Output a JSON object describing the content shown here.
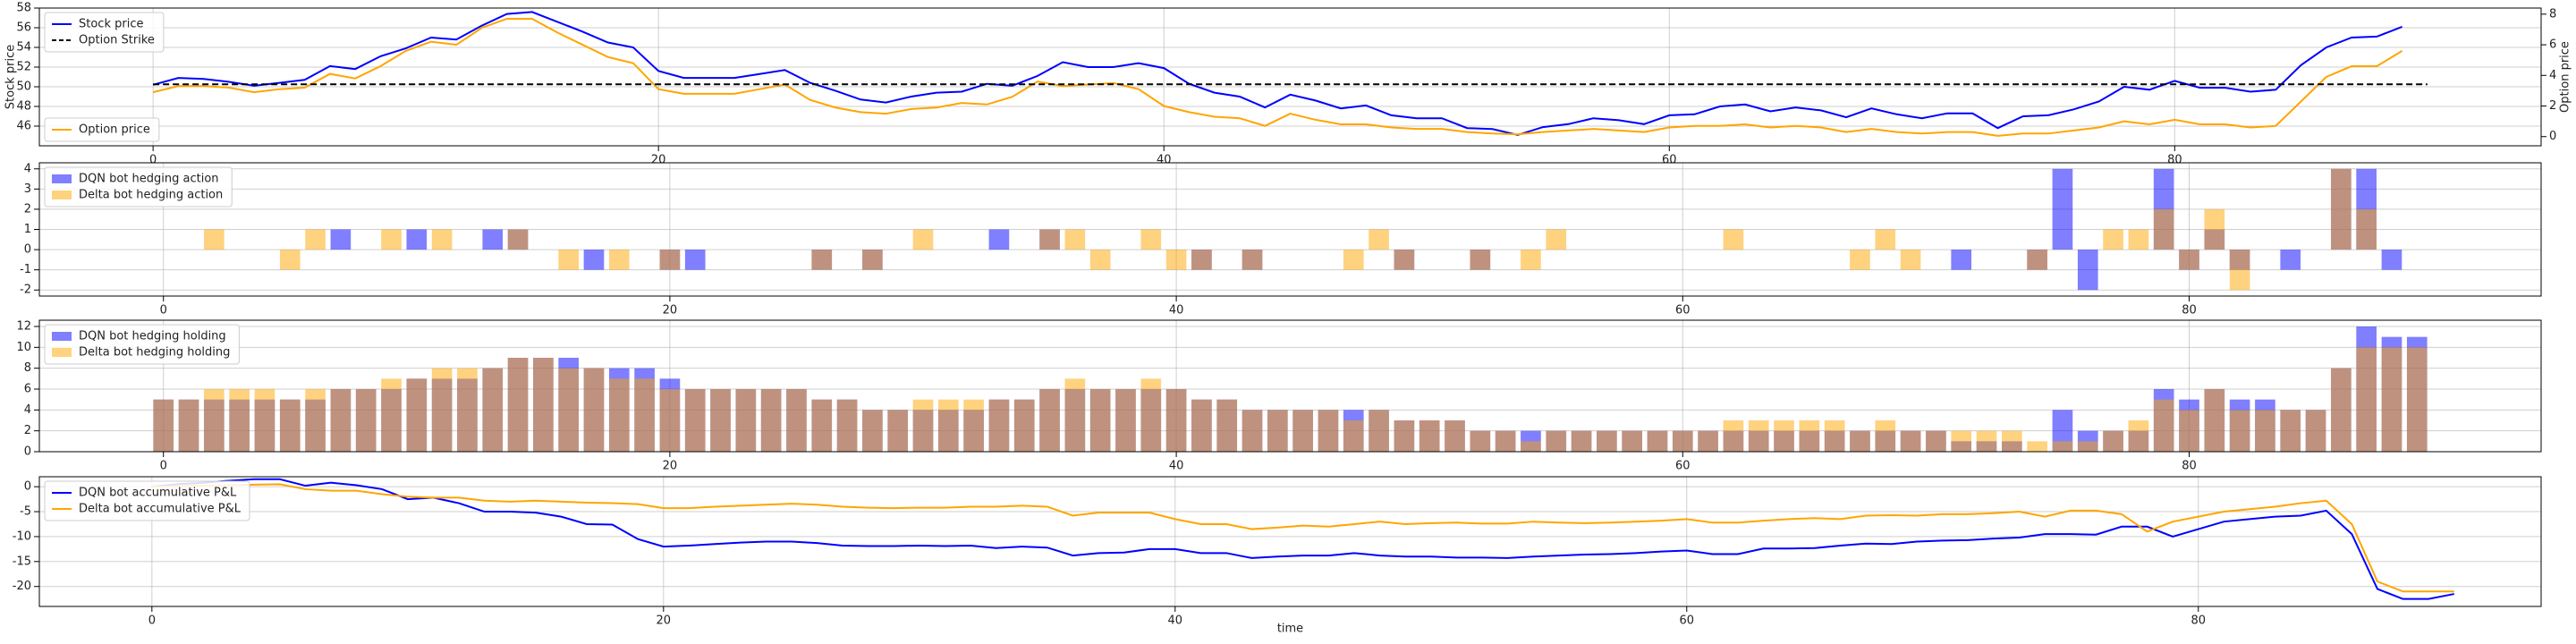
{
  "chart_data": [
    {
      "type": "line",
      "ylabel": "Stock price",
      "y2label": "Option price",
      "grid": true,
      "xlim": [
        -4.5,
        94.5
      ],
      "xticks": [
        0,
        20,
        40,
        60,
        80
      ],
      "ylim": [
        44,
        58
      ],
      "yticks": [
        46,
        48,
        50,
        52,
        54,
        56,
        58
      ],
      "y2lim": [
        -0.6,
        8.4
      ],
      "y2ticks": [
        0,
        2,
        4,
        6,
        8
      ],
      "x": [
        0,
        1,
        2,
        3,
        4,
        5,
        6,
        7,
        8,
        9,
        10,
        11,
        12,
        13,
        14,
        15,
        16,
        17,
        18,
        19,
        20,
        21,
        22,
        23,
        24,
        25,
        26,
        27,
        28,
        29,
        30,
        31,
        32,
        33,
        34,
        35,
        36,
        37,
        38,
        39,
        40,
        41,
        42,
        43,
        44,
        45,
        46,
        47,
        48,
        49,
        50,
        51,
        52,
        53,
        54,
        55,
        56,
        57,
        58,
        59,
        60,
        61,
        62,
        63,
        64,
        65,
        66,
        67,
        68,
        69,
        70,
        71,
        72,
        73,
        74,
        75,
        76,
        77,
        78,
        79,
        80,
        81,
        82,
        83,
        84,
        85,
        86,
        87,
        88,
        89
      ],
      "series": [
        {
          "name": "Stock price",
          "color": "#0000ff",
          "legend": "upper left",
          "values": [
            50.2,
            50.9,
            50.8,
            50.5,
            50.1,
            50.4,
            50.7,
            52.1,
            51.8,
            53.1,
            53.9,
            55.0,
            54.8,
            56.2,
            57.4,
            57.6,
            56.6,
            55.6,
            54.5,
            54.0,
            51.6,
            50.9,
            50.9,
            50.9,
            51.3,
            51.7,
            50.4,
            49.6,
            48.7,
            48.4,
            49.0,
            49.4,
            49.5,
            50.3,
            50.1,
            51.1,
            52.5,
            52.0,
            52.0,
            52.4,
            51.9,
            50.3,
            49.4,
            49.0,
            47.9,
            49.2,
            48.6,
            47.8,
            48.1,
            47.1,
            46.8,
            46.8,
            45.8,
            45.7,
            45.1,
            45.9,
            46.2,
            46.8,
            46.6,
            46.2,
            47.1,
            47.2,
            48.0,
            48.2,
            47.5,
            47.9,
            47.6,
            46.9,
            47.8,
            47.2,
            46.8,
            47.3,
            47.3,
            45.8,
            47.0,
            47.1,
            47.7,
            48.5,
            50.0,
            49.7,
            50.6,
            49.9,
            49.9,
            49.5,
            49.7,
            52.2,
            54.0,
            55.0,
            55.1,
            56.1
          ]
        },
        {
          "name": "Option price",
          "color": "#ffa500",
          "axis": "y2",
          "legend": "lower left",
          "values": [
            2.9,
            3.3,
            3.3,
            3.2,
            2.9,
            3.1,
            3.2,
            4.1,
            3.8,
            4.6,
            5.6,
            6.2,
            6.0,
            7.1,
            7.7,
            7.7,
            6.8,
            6.0,
            5.2,
            4.8,
            3.1,
            2.8,
            2.8,
            2.8,
            3.1,
            3.4,
            2.4,
            1.9,
            1.6,
            1.5,
            1.8,
            1.9,
            2.2,
            2.1,
            2.6,
            3.6,
            3.3,
            3.4,
            3.5,
            3.1,
            2.0,
            1.6,
            1.3,
            1.2,
            0.7,
            1.5,
            1.1,
            0.8,
            0.8,
            0.6,
            0.5,
            0.5,
            0.3,
            0.2,
            0.15,
            0.3,
            0.4,
            0.5,
            0.4,
            0.3,
            0.6,
            0.7,
            0.7,
            0.8,
            0.6,
            0.7,
            0.6,
            0.3,
            0.5,
            0.3,
            0.2,
            0.3,
            0.3,
            0.05,
            0.2,
            0.2,
            0.4,
            0.6,
            1.0,
            0.8,
            1.1,
            0.8,
            0.8,
            0.6,
            0.7,
            2.3,
            3.9,
            4.6,
            4.6,
            5.6
          ]
        }
      ],
      "strike": {
        "name": "Option Strike",
        "color": "#000000",
        "style": "dashed",
        "legend": "upper left",
        "y": 50.25,
        "x": [
          0,
          90
        ]
      }
    },
    {
      "type": "bar",
      "grid": true,
      "alpha": 0.5,
      "xlim": [
        -4.9,
        93.9
      ],
      "xticks": [
        0,
        20,
        40,
        60,
        80
      ],
      "ylim": [
        -2.3,
        4.3
      ],
      "yticks": [
        -2,
        -1,
        0,
        1,
        2,
        3,
        4
      ],
      "x": [
        0,
        1,
        2,
        3,
        4,
        5,
        6,
        7,
        8,
        9,
        10,
        11,
        12,
        13,
        14,
        15,
        16,
        17,
        18,
        19,
        20,
        21,
        22,
        23,
        24,
        25,
        26,
        27,
        28,
        29,
        30,
        31,
        32,
        33,
        34,
        35,
        36,
        37,
        38,
        39,
        40,
        41,
        42,
        43,
        44,
        45,
        46,
        47,
        48,
        49,
        50,
        51,
        52,
        53,
        54,
        55,
        56,
        57,
        58,
        59,
        60,
        61,
        62,
        63,
        64,
        65,
        66,
        67,
        68,
        69,
        70,
        71,
        72,
        73,
        74,
        75,
        76,
        77,
        78,
        79,
        80,
        81,
        82,
        83,
        84,
        85,
        86,
        87,
        88,
        89
      ],
      "series": [
        {
          "name": "DQN bot hedging action",
          "color": "#0000ff",
          "legend": "upper left",
          "values": [
            0,
            0,
            0,
            0,
            0,
            0,
            0,
            1,
            0,
            0,
            1,
            0,
            0,
            1,
            1,
            0,
            0,
            -1,
            0,
            0,
            -1,
            -1,
            0,
            0,
            0,
            0,
            -1,
            0,
            -1,
            0,
            0,
            0,
            0,
            1,
            0,
            1,
            0,
            0,
            0,
            0,
            0,
            -1,
            0,
            -1,
            0,
            0,
            0,
            0,
            0,
            -1,
            0,
            0,
            -1,
            0,
            0,
            0,
            0,
            0,
            0,
            0,
            0,
            0,
            0,
            0,
            0,
            0,
            0,
            0,
            0,
            0,
            0,
            -1,
            0,
            0,
            -1,
            4,
            -2,
            0,
            0,
            4,
            -1,
            1,
            -1,
            0,
            -1,
            0,
            4,
            4,
            -1,
            0
          ]
        },
        {
          "name": "Delta bot hedging action",
          "color": "#ffa500",
          "legend": "upper left",
          "values": [
            0,
            0,
            1,
            0,
            0,
            -1,
            1,
            0,
            0,
            1,
            0,
            1,
            0,
            0,
            1,
            0,
            -1,
            0,
            -1,
            0,
            -1,
            0,
            0,
            0,
            0,
            0,
            -1,
            0,
            -1,
            0,
            1,
            0,
            0,
            0,
            0,
            1,
            1,
            -1,
            0,
            1,
            -1,
            -1,
            0,
            -1,
            0,
            0,
            0,
            -1,
            1,
            -1,
            0,
            0,
            -1,
            0,
            -1,
            1,
            0,
            0,
            0,
            0,
            0,
            0,
            1,
            0,
            0,
            0,
            0,
            -1,
            1,
            -1,
            0,
            0,
            0,
            0,
            -1,
            0,
            0,
            1,
            1,
            2,
            -1,
            2,
            -2,
            0,
            0,
            0,
            4,
            2,
            0,
            0
          ]
        }
      ]
    },
    {
      "type": "bar",
      "grid": true,
      "alpha": 0.5,
      "xlim": [
        -4.9,
        93.9
      ],
      "xticks": [
        0,
        20,
        40,
        60,
        80
      ],
      "ylim": [
        0,
        12.6
      ],
      "yticks": [
        0,
        2,
        4,
        6,
        8,
        10,
        12
      ],
      "x": [
        0,
        1,
        2,
        3,
        4,
        5,
        6,
        7,
        8,
        9,
        10,
        11,
        12,
        13,
        14,
        15,
        16,
        17,
        18,
        19,
        20,
        21,
        22,
        23,
        24,
        25,
        26,
        27,
        28,
        29,
        30,
        31,
        32,
        33,
        34,
        35,
        36,
        37,
        38,
        39,
        40,
        41,
        42,
        43,
        44,
        45,
        46,
        47,
        48,
        49,
        50,
        51,
        52,
        53,
        54,
        55,
        56,
        57,
        58,
        59,
        60,
        61,
        62,
        63,
        64,
        65,
        66,
        67,
        68,
        69,
        70,
        71,
        72,
        73,
        74,
        75,
        76,
        77,
        78,
        79,
        80,
        81,
        82,
        83,
        84,
        85,
        86,
        87,
        88,
        89
      ],
      "series": [
        {
          "name": "DQN bot hedging holding",
          "color": "#0000ff",
          "legend": "upper left",
          "values": [
            5,
            5,
            5,
            5,
            5,
            5,
            5,
            6,
            6,
            6,
            7,
            7,
            7,
            8,
            9,
            9,
            9,
            8,
            8,
            8,
            7,
            6,
            6,
            6,
            6,
            6,
            5,
            5,
            4,
            4,
            4,
            4,
            4,
            5,
            5,
            6,
            6,
            6,
            6,
            6,
            6,
            5,
            5,
            4,
            4,
            4,
            4,
            4,
            4,
            3,
            3,
            3,
            2,
            2,
            2,
            2,
            2,
            2,
            2,
            2,
            2,
            2,
            2,
            2,
            2,
            2,
            2,
            2,
            2,
            2,
            2,
            1,
            1,
            1,
            0,
            4,
            2,
            2,
            2,
            6,
            5,
            6,
            5,
            5,
            4,
            4,
            8,
            12,
            11,
            11
          ]
        },
        {
          "name": "Delta bot hedging holding",
          "color": "#ffa500",
          "legend": "upper left",
          "values": [
            5,
            5,
            6,
            6,
            6,
            5,
            6,
            6,
            6,
            7,
            7,
            8,
            8,
            8,
            9,
            9,
            8,
            8,
            7,
            7,
            6,
            6,
            6,
            6,
            6,
            6,
            5,
            5,
            4,
            4,
            5,
            5,
            5,
            5,
            5,
            6,
            7,
            6,
            6,
            7,
            6,
            5,
            5,
            4,
            4,
            4,
            4,
            3,
            4,
            3,
            3,
            3,
            2,
            2,
            1,
            2,
            2,
            2,
            2,
            2,
            2,
            2,
            3,
            3,
            3,
            3,
            3,
            2,
            3,
            2,
            2,
            2,
            2,
            2,
            1,
            1,
            1,
            2,
            3,
            5,
            4,
            6,
            4,
            4,
            4,
            4,
            8,
            10,
            10,
            10
          ]
        }
      ]
    },
    {
      "type": "line",
      "grid": true,
      "xlabel": "time",
      "xlim": [
        -4.4,
        93.4
      ],
      "xticks": [
        0,
        20,
        40,
        60,
        80
      ],
      "ylim": [
        -24,
        2
      ],
      "yticks": [
        -20,
        -15,
        -10,
        -5,
        0
      ],
      "x": [
        0,
        1,
        2,
        3,
        4,
        5,
        6,
        7,
        8,
        9,
        10,
        11,
        12,
        13,
        14,
        15,
        16,
        17,
        18,
        19,
        20,
        21,
        22,
        23,
        24,
        25,
        26,
        27,
        28,
        29,
        30,
        31,
        32,
        33,
        34,
        35,
        36,
        37,
        38,
        39,
        40,
        41,
        42,
        43,
        44,
        45,
        46,
        47,
        48,
        49,
        50,
        51,
        52,
        53,
        54,
        55,
        56,
        57,
        58,
        59,
        60,
        61,
        62,
        63,
        64,
        65,
        66,
        67,
        68,
        69,
        70,
        71,
        72,
        73,
        74,
        75,
        76,
        77,
        78,
        79,
        80,
        81,
        82,
        83,
        84,
        85,
        86,
        87,
        88,
        89,
        90
      ],
      "series": [
        {
          "name": "DQN bot accumulative P&L",
          "color": "#0000ff",
          "legend": "upper left",
          "values": [
            0,
            0.5,
            0.8,
            1.2,
            1.5,
            1.5,
            0.2,
            0.8,
            0.3,
            -0.5,
            -2.5,
            -2.2,
            -3.3,
            -5,
            -5,
            -5.2,
            -6,
            -7.5,
            -7.6,
            -10.5,
            -12,
            -11.8,
            -11.5,
            -11.2,
            -11,
            -11,
            -11.3,
            -11.8,
            -11.9,
            -11.9,
            -11.8,
            -11.9,
            -11.8,
            -12.3,
            -12,
            -12.2,
            -13.8,
            -13.3,
            -13.2,
            -12.5,
            -12.5,
            -13.3,
            -13.3,
            -14.3,
            -14,
            -13.8,
            -13.8,
            -13.3,
            -13.8,
            -14,
            -14,
            -14.2,
            -14.2,
            -14.3,
            -14,
            -13.8,
            -13.6,
            -13.5,
            -13.3,
            -13,
            -12.8,
            -13.5,
            -13.5,
            -12.4,
            -12.4,
            -12.3,
            -11.8,
            -11.4,
            -11.5,
            -11,
            -10.8,
            -10.7,
            -10.4,
            -10.2,
            -9.5,
            -9.5,
            -9.6,
            -8,
            -8,
            -10,
            -8.5,
            -7,
            -6.5,
            -6,
            -5.8,
            -4.8,
            -9.5,
            -20.5,
            -22.5,
            -22.5,
            -21.5
          ]
        },
        {
          "name": "Delta bot accumulative P&L",
          "color": "#ffa500",
          "legend": "upper left",
          "values": [
            0,
            0.1,
            0.2,
            0.3,
            0.4,
            0.5,
            -0.5,
            -0.8,
            -0.8,
            -1.5,
            -2,
            -2.2,
            -2.2,
            -2.8,
            -3,
            -2.8,
            -3,
            -3.2,
            -3.3,
            -3.5,
            -4.3,
            -4.3,
            -4,
            -3.8,
            -3.6,
            -3.4,
            -3.6,
            -4,
            -4.2,
            -4.3,
            -4.2,
            -4.2,
            -4,
            -4,
            -3.8,
            -4,
            -5.8,
            -5.2,
            -5.2,
            -5.2,
            -6.5,
            -7.5,
            -7.5,
            -8.5,
            -8.2,
            -7.8,
            -8,
            -7.5,
            -7,
            -7.5,
            -7.3,
            -7.2,
            -7.4,
            -7.4,
            -7,
            -7.2,
            -7.3,
            -7.2,
            -7,
            -6.8,
            -6.5,
            -7.2,
            -7.2,
            -6.8,
            -6.5,
            -6.3,
            -6.5,
            -5.8,
            -5.7,
            -5.8,
            -5.5,
            -5.5,
            -5.3,
            -5,
            -6,
            -4.8,
            -4.8,
            -5.5,
            -9,
            -7,
            -6,
            -5,
            -4.5,
            -4,
            -3.3,
            -2.8,
            -7.5,
            -19,
            -21,
            -21,
            -21
          ]
        }
      ]
    }
  ]
}
